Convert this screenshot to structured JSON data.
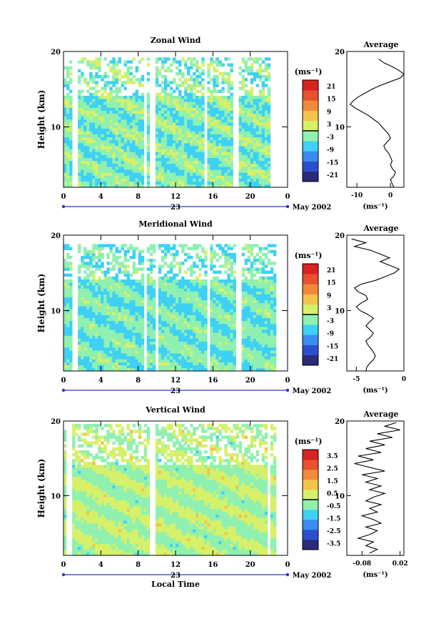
{
  "chart_data": [
    {
      "type": "heatmap",
      "title": "Zonal Wind",
      "xlabel": "",
      "ylabel": "Height (km)",
      "date_label": "23",
      "month_label": "May 2002",
      "xticks": [
        "0",
        "4",
        "8",
        "12",
        "16",
        "20",
        "0"
      ],
      "xlim": [
        0,
        24
      ],
      "yticks": [
        "20",
        "10"
      ],
      "ylim": [
        2,
        20
      ],
      "colorbar": {
        "unit": "(ms⁻¹)",
        "ticks": [
          "21",
          "15",
          "9",
          "3",
          "-3",
          "-9",
          "-15",
          "-21"
        ],
        "range": [
          -24,
          24
        ],
        "zero_line": 0
      },
      "field": {
        "max_height": 19.2,
        "mean": -3,
        "amplitude": 6,
        "gaps": [
          1.2,
          8.8,
          9.6,
          15.2,
          18.4,
          22.4
        ]
      },
      "profile": {
        "title": "Average",
        "xlabel": "(ms⁻¹)",
        "xticks": [
          "-10",
          "0"
        ],
        "xlim": [
          -13,
          4
        ],
        "yticks": [
          "20",
          "10"
        ],
        "ylim": [
          2,
          20
        ],
        "y": [
          19.0,
          18.5,
          18.0,
          17.5,
          17.0,
          16.5,
          16.0,
          15.5,
          15.0,
          14.5,
          14.0,
          13.5,
          13.0,
          12.5,
          12.0,
          11.5,
          11.0,
          10.5,
          10.0,
          9.5,
          9.0,
          8.5,
          8.0,
          7.5,
          7.0,
          6.5,
          6.0,
          5.5,
          5.0,
          4.5,
          4.0,
          3.5,
          3.0,
          2.5,
          2.0
        ],
        "x": [
          -3.5,
          -2.0,
          0.5,
          2.5,
          4.0,
          3.0,
          0.0,
          -3.0,
          -5.5,
          -7.5,
          -9.5,
          -11.0,
          -12.0,
          -10.5,
          -8.5,
          -6.5,
          -5.0,
          -3.5,
          -2.5,
          -1.5,
          -0.5,
          0.0,
          -1.0,
          -2.0,
          -1.5,
          -0.5,
          0.0,
          0.5,
          0.0,
          0.5,
          1.5,
          1.0,
          0.0,
          0.5,
          1.0
        ]
      }
    },
    {
      "type": "heatmap",
      "title": "Meridional Wind",
      "xlabel": "",
      "ylabel": "Height (km)",
      "date_label": "23",
      "month_label": "May 2002",
      "xticks": [
        "0",
        "4",
        "8",
        "12",
        "16",
        "20",
        "0"
      ],
      "xlim": [
        0,
        24
      ],
      "yticks": [
        "20",
        "10"
      ],
      "ylim": [
        2,
        20
      ],
      "colorbar": {
        "unit": "(ms⁻¹)",
        "ticks": [
          "21",
          "15",
          "9",
          "3",
          "-3",
          "-9",
          "-15",
          "-21"
        ],
        "range": [
          -24,
          24
        ],
        "zero_line": 0
      },
      "field": {
        "max_height": 19.0,
        "mean": -4,
        "amplitude": 5,
        "gaps": [
          1.2,
          8.8,
          10.0,
          15.6,
          18.8
        ]
      },
      "profile": {
        "title": "Average",
        "xlabel": "(ms⁻¹)",
        "xticks": [
          "-5",
          "0"
        ],
        "xlim": [
          -6,
          0
        ],
        "yticks": [
          "20",
          "10"
        ],
        "ylim": [
          2,
          20
        ],
        "y": [
          19.5,
          19.0,
          18.5,
          18.0,
          17.5,
          17.0,
          16.5,
          16.0,
          15.5,
          15.0,
          14.5,
          14.0,
          13.5,
          13.0,
          12.5,
          12.0,
          11.5,
          11.0,
          10.5,
          10.0,
          9.5,
          9.0,
          8.5,
          8.0,
          7.5,
          7.0,
          6.5,
          6.0,
          5.5,
          5.0,
          4.5,
          4.0,
          3.5,
          3.0,
          2.5,
          2.0
        ],
        "x": [
          -5.5,
          -4.0,
          -5.2,
          -3.5,
          -2.5,
          -1.5,
          -2.5,
          -1.5,
          -0.5,
          -1.0,
          -2.0,
          -3.0,
          -4.5,
          -5.2,
          -4.8,
          -4.0,
          -3.8,
          -4.5,
          -5.0,
          -4.6,
          -3.8,
          -3.2,
          -3.6,
          -4.0,
          -3.6,
          -3.2,
          -3.5,
          -4.0,
          -3.8,
          -3.5,
          -3.2,
          -3.0,
          -3.2,
          -3.6,
          -3.9,
          -4.0
        ]
      }
    },
    {
      "type": "heatmap",
      "title": "Vertical Wind",
      "xlabel": "Local Time",
      "ylabel": "Height (km)",
      "date_label": "23",
      "month_label": "May 2002",
      "xticks": [
        "0",
        "4",
        "8",
        "12",
        "16",
        "20",
        "0"
      ],
      "xlim": [
        0,
        24
      ],
      "yticks": [
        "20",
        "10"
      ],
      "ylim": [
        2,
        20
      ],
      "colorbar": {
        "unit": "(ms⁻¹)",
        "ticks": [
          "3.5",
          "2.5",
          "1.5",
          "0.5",
          "-0.5",
          "-1.5",
          "-2.5",
          "-3.5"
        ],
        "range": [
          -4,
          4
        ],
        "zero_line": 0
      },
      "field": {
        "max_height": 19.8,
        "mean": 0,
        "amplitude": 0.8,
        "gaps": [
          0.6,
          9.6,
          22.0
        ]
      },
      "profile": {
        "title": "Average",
        "xlabel": "(ms⁻¹)",
        "xticks": [
          "-0.08",
          "0.02"
        ],
        "xlim": [
          -0.12,
          0.03
        ],
        "yticks": [
          "20",
          "10"
        ],
        "ylim": [
          2,
          20
        ],
        "y": [
          19.8,
          19.3,
          18.8,
          18.3,
          17.8,
          17.3,
          16.8,
          16.3,
          15.8,
          15.3,
          14.8,
          14.3,
          13.8,
          13.3,
          12.8,
          12.3,
          11.8,
          11.3,
          10.8,
          10.3,
          9.8,
          9.3,
          8.8,
          8.3,
          7.8,
          7.3,
          6.8,
          6.3,
          5.8,
          5.3,
          4.8,
          4.3,
          3.8,
          3.3,
          2.8,
          2.3
        ],
        "x": [
          0.01,
          -0.02,
          0.02,
          -0.04,
          0.0,
          -0.06,
          -0.02,
          -0.07,
          -0.03,
          -0.09,
          -0.05,
          -0.1,
          -0.06,
          -0.02,
          -0.08,
          -0.04,
          -0.07,
          -0.03,
          -0.06,
          -0.02,
          -0.05,
          -0.07,
          -0.03,
          -0.06,
          -0.04,
          -0.08,
          -0.05,
          -0.03,
          -0.07,
          -0.04,
          -0.06,
          -0.09,
          -0.05,
          -0.07,
          -0.04,
          -0.06
        ]
      }
    }
  ]
}
